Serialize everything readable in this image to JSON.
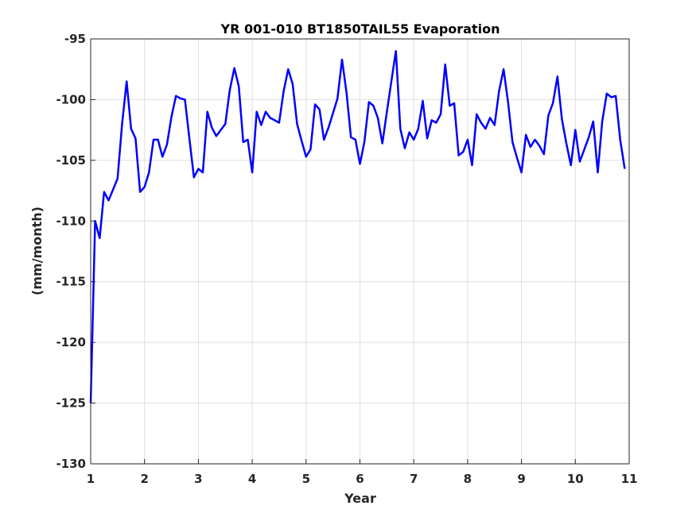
{
  "chart_data": {
    "type": "line",
    "title": "YR 001-010 BT1850TAIL55 Evaporation",
    "xlabel": "Year",
    "ylabel": "(mm/month)",
    "xlim": [
      1,
      11
    ],
    "ylim": [
      -130,
      -95
    ],
    "xticks": [
      1,
      2,
      3,
      4,
      5,
      6,
      7,
      8,
      9,
      10,
      11
    ],
    "yticks": [
      -130,
      -125,
      -120,
      -115,
      -110,
      -105,
      -100,
      -95
    ],
    "grid": true,
    "line_color": "#0000ff",
    "series": [
      {
        "x": [
          1.0,
          1.083,
          1.167,
          1.25,
          1.333,
          1.417,
          1.5,
          1.583,
          1.667,
          1.75,
          1.833,
          1.917,
          2.0,
          2.083,
          2.167,
          2.25,
          2.333,
          2.417,
          2.5,
          2.583,
          2.667,
          2.75,
          2.833,
          2.917,
          3.0,
          3.083,
          3.167,
          3.25,
          3.333,
          3.417,
          3.5,
          3.583,
          3.667,
          3.75,
          3.833,
          3.917,
          4.0,
          4.083,
          4.167,
          4.25,
          4.333,
          4.417,
          4.5,
          4.583,
          4.667,
          4.75,
          4.833,
          4.917,
          5.0,
          5.083,
          5.167,
          5.25,
          5.333,
          5.417,
          5.5,
          5.583,
          5.667,
          5.75,
          5.833,
          5.917,
          6.0,
          6.083,
          6.167,
          6.25,
          6.333,
          6.417,
          6.5,
          6.583,
          6.667,
          6.75,
          6.833,
          6.917,
          7.0,
          7.083,
          7.167,
          7.25,
          7.333,
          7.417,
          7.5,
          7.583,
          7.667,
          7.75,
          7.833,
          7.917,
          8.0,
          8.083,
          8.167,
          8.25,
          8.333,
          8.417,
          8.5,
          8.583,
          8.667,
          8.75,
          8.833,
          8.917,
          9.0,
          9.083,
          9.167,
          9.25,
          9.333,
          9.417,
          9.5,
          9.583,
          9.667,
          9.75,
          9.833,
          9.917,
          10.0,
          10.083,
          10.167,
          10.25,
          10.333,
          10.417,
          10.5,
          10.583,
          10.667,
          10.75,
          10.833,
          10.917
        ],
        "values": [
          -125.0,
          -110.0,
          -111.4,
          -107.6,
          -108.3,
          -107.4,
          -106.5,
          -102.0,
          -98.5,
          -102.4,
          -103.2,
          -107.6,
          -107.2,
          -106.0,
          -103.3,
          -103.3,
          -104.7,
          -103.7,
          -101.4,
          -99.7,
          -99.9,
          -100.0,
          -103.2,
          -106.4,
          -105.7,
          -106.0,
          -101.0,
          -102.3,
          -103.0,
          -102.5,
          -102.0,
          -99.2,
          -97.4,
          -98.9,
          -103.5,
          -103.3,
          -106.0,
          -101.0,
          -102.1,
          -101.0,
          -101.5,
          -101.7,
          -101.9,
          -99.3,
          -97.5,
          -98.7,
          -102.0,
          -103.4,
          -104.7,
          -104.1,
          -100.4,
          -100.8,
          -103.3,
          -102.3,
          -101.1,
          -99.9,
          -96.7,
          -99.4,
          -103.1,
          -103.3,
          -105.3,
          -103.5,
          -100.2,
          -100.5,
          -101.5,
          -103.6,
          -101.0,
          -98.5,
          -96.0,
          -102.4,
          -104.0,
          -102.7,
          -103.3,
          -102.4,
          -100.1,
          -103.2,
          -101.7,
          -101.9,
          -101.2,
          -97.1,
          -100.5,
          -100.3,
          -104.6,
          -104.3,
          -103.3,
          -105.4,
          -101.2,
          -101.9,
          -102.4,
          -101.5,
          -102.1,
          -99.3,
          -97.5,
          -100.2,
          -103.5,
          -104.8,
          -106.0,
          -102.9,
          -103.9,
          -103.3,
          -103.8,
          -104.5,
          -101.3,
          -100.3,
          -98.1,
          -101.6,
          -103.6,
          -105.4,
          -102.5,
          -105.1,
          -104.1,
          -103.1,
          -101.8,
          -106.0,
          -101.8,
          -99.5,
          -99.8,
          -99.7,
          -103.3,
          -105.7
        ]
      }
    ]
  }
}
